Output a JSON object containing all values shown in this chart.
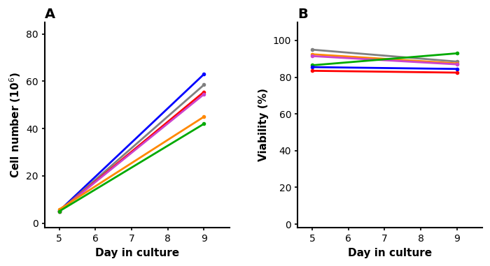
{
  "panel_A": {
    "title": "A",
    "xlabel": "Day in culture",
    "ylabel": "Cell number (10$^6$)",
    "xlim": [
      4.6,
      9.7
    ],
    "ylim": [
      -2,
      85
    ],
    "yticks": [
      0,
      20,
      40,
      60,
      80
    ],
    "xticks": [
      5,
      6,
      7,
      8,
      9
    ],
    "lines": [
      {
        "color": "#0000ff",
        "x": [
          5,
          9
        ],
        "y": [
          5.2,
          63.0
        ]
      },
      {
        "color": "#808080",
        "x": [
          5,
          9
        ],
        "y": [
          5.0,
          58.5
        ]
      },
      {
        "color": "#ff0000",
        "x": [
          5,
          9
        ],
        "y": [
          5.0,
          55.5
        ]
      },
      {
        "color": "#cc44cc",
        "x": [
          5,
          9
        ],
        "y": [
          5.0,
          54.5
        ]
      },
      {
        "color": "#ff8800",
        "x": [
          5,
          9
        ],
        "y": [
          5.8,
          45.0
        ]
      },
      {
        "color": "#00aa00",
        "x": [
          5,
          9
        ],
        "y": [
          5.0,
          42.0
        ]
      }
    ]
  },
  "panel_B": {
    "title": "B",
    "xlabel": "Day in culture",
    "ylabel": "Viability (%)",
    "xlim": [
      4.6,
      9.7
    ],
    "ylim": [
      -2,
      110
    ],
    "yticks": [
      0,
      20,
      40,
      60,
      80,
      100
    ],
    "xticks": [
      5,
      6,
      7,
      8,
      9
    ],
    "lines": [
      {
        "color": "#808080",
        "x": [
          5,
          9
        ],
        "y": [
          95.0,
          88.5
        ]
      },
      {
        "color": "#ff8800",
        "x": [
          5,
          9
        ],
        "y": [
          92.5,
          87.5
        ]
      },
      {
        "color": "#cc44cc",
        "x": [
          5,
          9
        ],
        "y": [
          91.5,
          87.0
        ]
      },
      {
        "color": "#00aa00",
        "x": [
          5,
          9
        ],
        "y": [
          86.5,
          93.0
        ]
      },
      {
        "color": "#0000ff",
        "x": [
          5,
          9
        ],
        "y": [
          85.5,
          84.5
        ]
      },
      {
        "color": "#ff0000",
        "x": [
          5,
          9
        ],
        "y": [
          83.5,
          82.5
        ]
      }
    ]
  },
  "linewidth": 2.0,
  "markersize": 4,
  "label_fontsize": 11,
  "tick_fontsize": 10,
  "title_fontsize": 14
}
